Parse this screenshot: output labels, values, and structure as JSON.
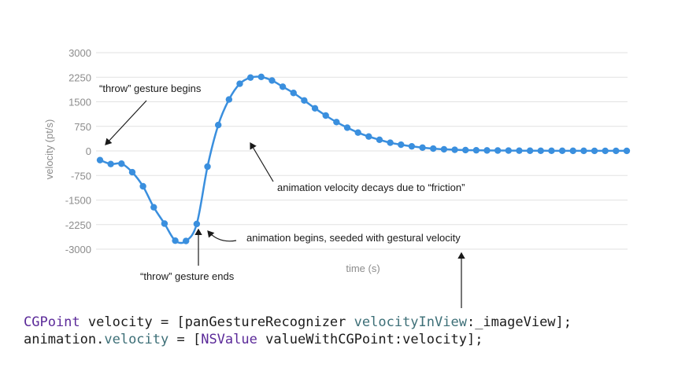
{
  "chart_data": {
    "type": "line",
    "xlabel": "time (s)",
    "ylabel": "velocity (pt/s)",
    "ylim": [
      -3000,
      3000
    ],
    "yticks": [
      3000,
      2250,
      1500,
      750,
      0,
      -750,
      -1500,
      -2250,
      -3000
    ],
    "ytick_labels": [
      "3000",
      "2250",
      "1500",
      "750",
      "0",
      "-750",
      "-1500",
      "-2250",
      "-3000"
    ],
    "grid": true,
    "series": [
      {
        "color": "#3a8fde",
        "values": [
          -280,
          -400,
          -390,
          -650,
          -1080,
          -1720,
          -2220,
          -2740,
          -2750,
          -2230,
          -480,
          790,
          1570,
          2050,
          2240,
          2260,
          2150,
          1960,
          1770,
          1540,
          1300,
          1080,
          880,
          710,
          560,
          440,
          340,
          250,
          190,
          140,
          100,
          70,
          50,
          35,
          25,
          20,
          15,
          12,
          10,
          8,
          6,
          5,
          4,
          4,
          3,
          3,
          2,
          2,
          2,
          2
        ]
      }
    ],
    "annotations": [
      {
        "id": "gesture-begins",
        "text": "“throw”  gesture begins"
      },
      {
        "id": "gesture-ends",
        "text": "“throw”  gesture ends"
      },
      {
        "id": "animation-begins",
        "text": "animation begins, seeded with gestural velocity"
      },
      {
        "id": "decays",
        "text": "animation velocity decays due to “friction”"
      }
    ]
  },
  "code": {
    "line1": [
      {
        "t": "CGPoint",
        "c": "kw"
      },
      {
        "t": " velocity = [panGestureRecognizer ",
        "c": ""
      },
      {
        "t": "velocityInView",
        "c": "pr"
      },
      {
        "t": ":_imageView];",
        "c": ""
      }
    ],
    "line2": [
      {
        "t": "animation.",
        "c": ""
      },
      {
        "t": "velocity",
        "c": "pr"
      },
      {
        "t": " = [",
        "c": ""
      },
      {
        "t": "NSValue",
        "c": "kw"
      },
      {
        "t": " valueWithCGPoint:velocity];",
        "c": ""
      }
    ]
  }
}
